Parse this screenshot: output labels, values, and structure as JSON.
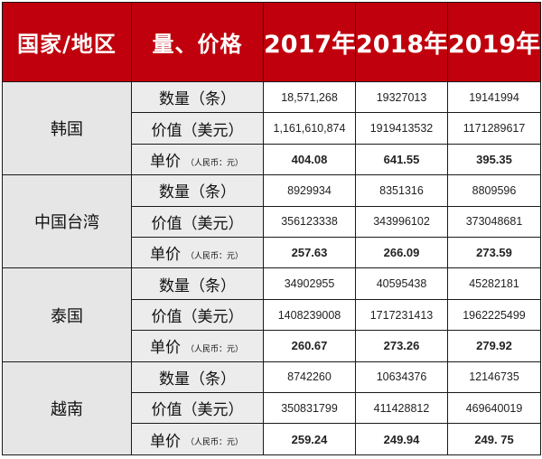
{
  "header": {
    "region": "国家/地区",
    "metric": "量、价格",
    "years": [
      "2017年",
      "2018年",
      "2019年"
    ]
  },
  "labels": {
    "quantity": "数量（条）",
    "value": "价值（美元）",
    "unit_price": "单价",
    "unit_price_note": "（人民币：元）"
  },
  "regions": [
    {
      "name": "韩国",
      "quantity": [
        "18,571,268",
        "19327013",
        "19141994"
      ],
      "value": [
        "1,161,610,874",
        "1919413532",
        "1171289617"
      ],
      "unit_price": [
        "404.08",
        "641.55",
        "395.35"
      ]
    },
    {
      "name": "中国台湾",
      "quantity": [
        "8929934",
        "8351316",
        "8809596"
      ],
      "value": [
        "356123338",
        "343996102",
        "373048681"
      ],
      "unit_price": [
        "257.63",
        "266.09",
        "273.59"
      ]
    },
    {
      "name": "泰国",
      "quantity": [
        "34902955",
        "40595438",
        "45282181"
      ],
      "value": [
        "1408239008",
        "1717231413",
        "1962225499"
      ],
      "unit_price": [
        "260.67",
        "273.26",
        "279.92"
      ]
    },
    {
      "name": "越南",
      "quantity": [
        "8742260",
        "10634376",
        "12146735"
      ],
      "value": [
        "350831799",
        "411428812",
        "469640019"
      ],
      "unit_price": [
        "259.24",
        "249.94",
        "249. 75"
      ]
    }
  ],
  "colors": {
    "header_bg": "#c0000c",
    "header_text": "#ffffff",
    "label_bg": "#e6e6e6"
  }
}
